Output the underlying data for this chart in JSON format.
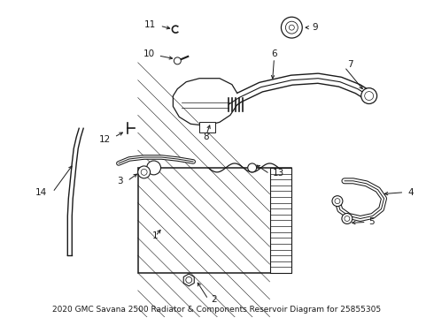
{
  "title": "2020 GMC Savana 2500 Radiator & Components Reservoir Diagram for 25855305",
  "bg_color": "#ffffff",
  "line_color": "#1a1a1a",
  "font_size": 7.5,
  "title_font_size": 6.5,
  "labels": {
    "1": [
      175,
      265,
      183,
      258
    ],
    "2": [
      232,
      340,
      220,
      340
    ],
    "3": [
      133,
      205,
      148,
      205
    ],
    "4": [
      455,
      218,
      440,
      218
    ],
    "5": [
      415,
      248,
      408,
      242
    ],
    "6": [
      310,
      62,
      310,
      75
    ],
    "7": [
      378,
      72,
      372,
      82
    ],
    "8": [
      232,
      148,
      222,
      140
    ],
    "9": [
      350,
      28,
      338,
      28
    ],
    "10": [
      178,
      60,
      193,
      67
    ],
    "11": [
      168,
      28,
      183,
      33
    ],
    "12": [
      128,
      152,
      137,
      143
    ],
    "13": [
      305,
      198,
      298,
      190
    ],
    "14": [
      45,
      218,
      57,
      218
    ]
  }
}
